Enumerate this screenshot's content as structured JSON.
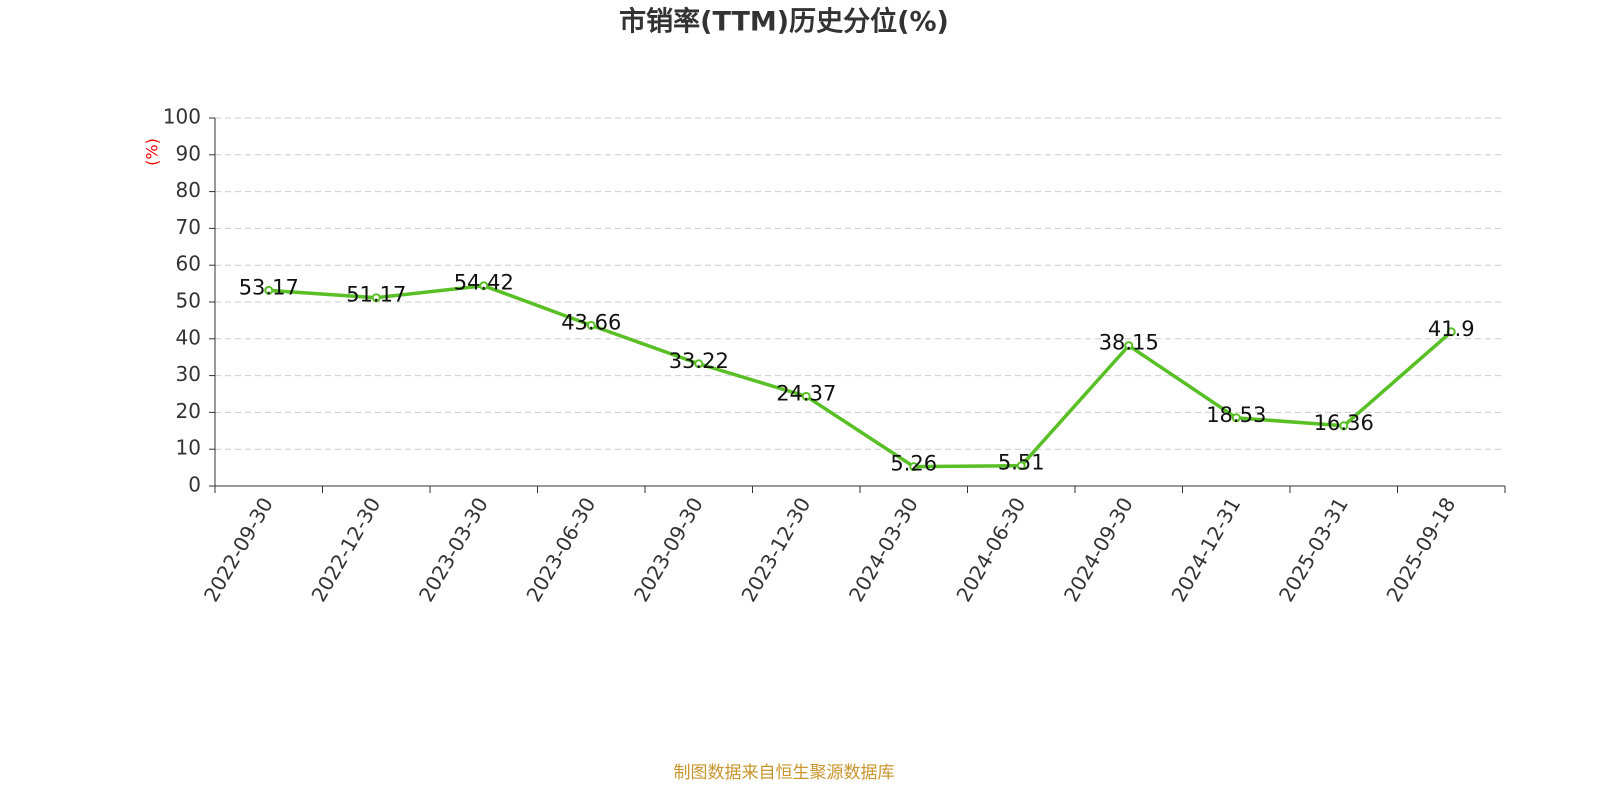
{
  "chart_data": {
    "type": "line",
    "title": "市销率(TTM)历史分位(%)",
    "y_label": "(%)",
    "source": "制图数据来自恒生聚源数据库",
    "categories": [
      "2022-09-30",
      "2022-12-30",
      "2023-03-30",
      "2023-06-30",
      "2023-09-30",
      "2023-12-30",
      "2024-03-30",
      "2024-06-30",
      "2024-09-30",
      "2024-12-31",
      "2025-03-31",
      "2025-09-18"
    ],
    "series": [
      {
        "name": "市销率(TTM)历史分位",
        "color": "#58bf24",
        "values": [
          53.17,
          51.17,
          54.42,
          43.66,
          33.22,
          24.37,
          5.26,
          5.51,
          38.15,
          18.53,
          16.36,
          41.9
        ]
      }
    ],
    "ylim": [
      0,
      100
    ],
    "yticks": [
      0,
      10,
      20,
      30,
      40,
      50,
      60,
      70,
      80,
      90,
      100
    ],
    "grid": true
  }
}
